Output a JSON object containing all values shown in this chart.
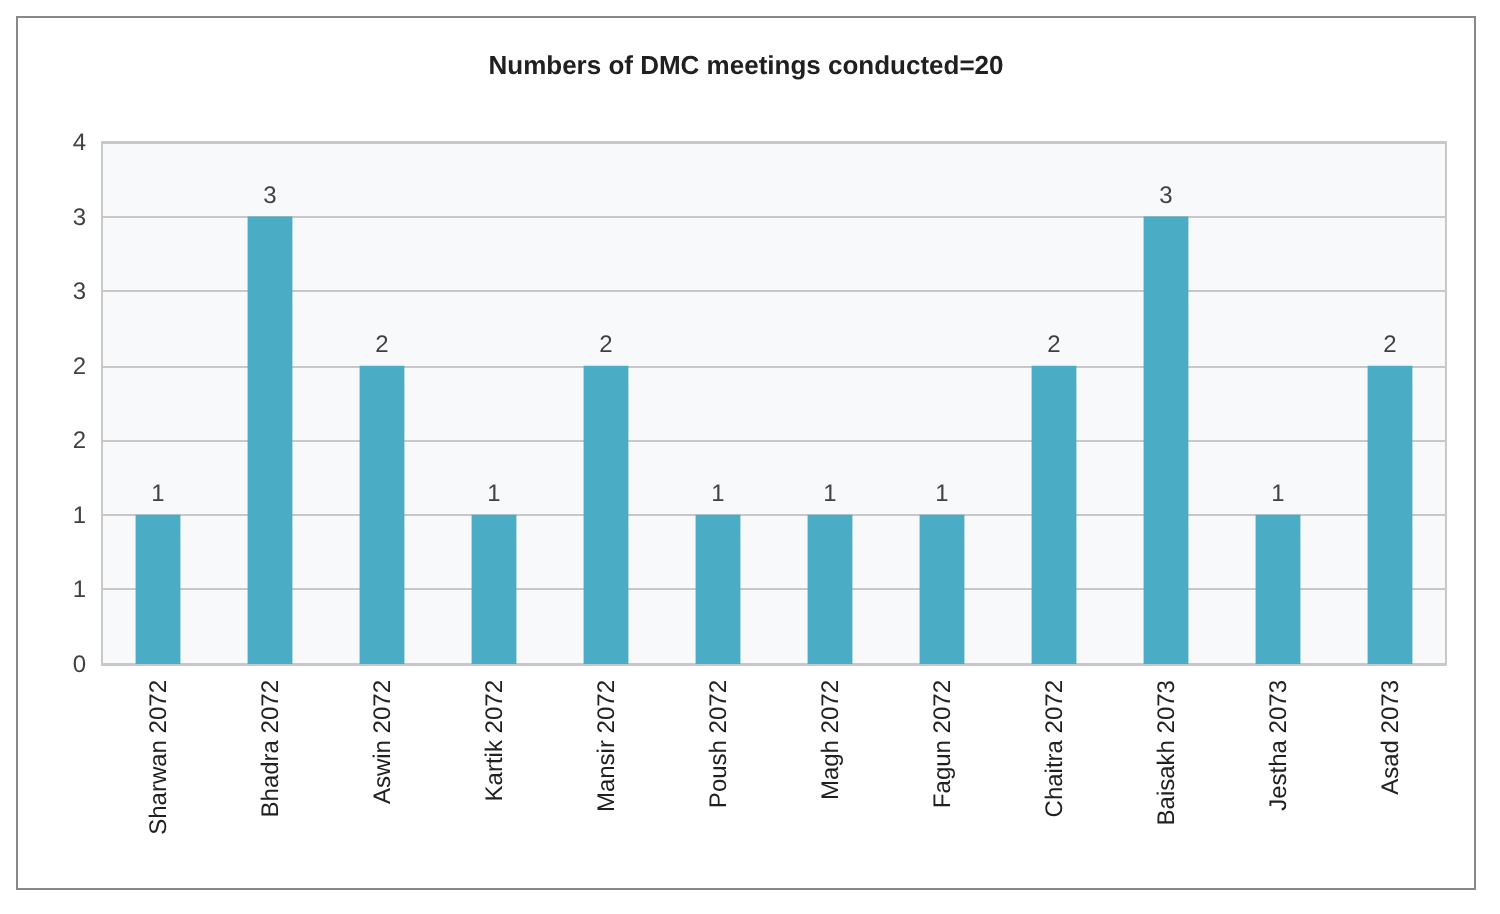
{
  "chart_data": {
    "type": "bar",
    "title": "Numbers of DMC meetings conducted=20",
    "categories": [
      "Sharwan 2072",
      "Bhadra 2072",
      "Aswin 2072",
      "Kartik 2072",
      "Mansir 2072",
      "Poush 2072",
      "Magh 2072",
      "Fagun 2072",
      "Chaitra 2072",
      "Baisakh 2073",
      "Jestha 2073",
      "Asad 2073"
    ],
    "values": [
      1,
      3,
      2,
      1,
      2,
      1,
      1,
      1,
      2,
      3,
      1,
      2
    ],
    "color": "#4bacc6",
    "ylim": [
      0,
      3.5
    ],
    "yticks": [
      0,
      {
        "value": 0.5,
        "label": "1"
      },
      1,
      {
        "value": 1.5,
        "label": "2"
      },
      2,
      {
        "value": 2.5,
        "label": "3"
      },
      3,
      {
        "value": 3.5,
        "label": "4"
      }
    ],
    "data_labels": true,
    "grid": "y"
  }
}
